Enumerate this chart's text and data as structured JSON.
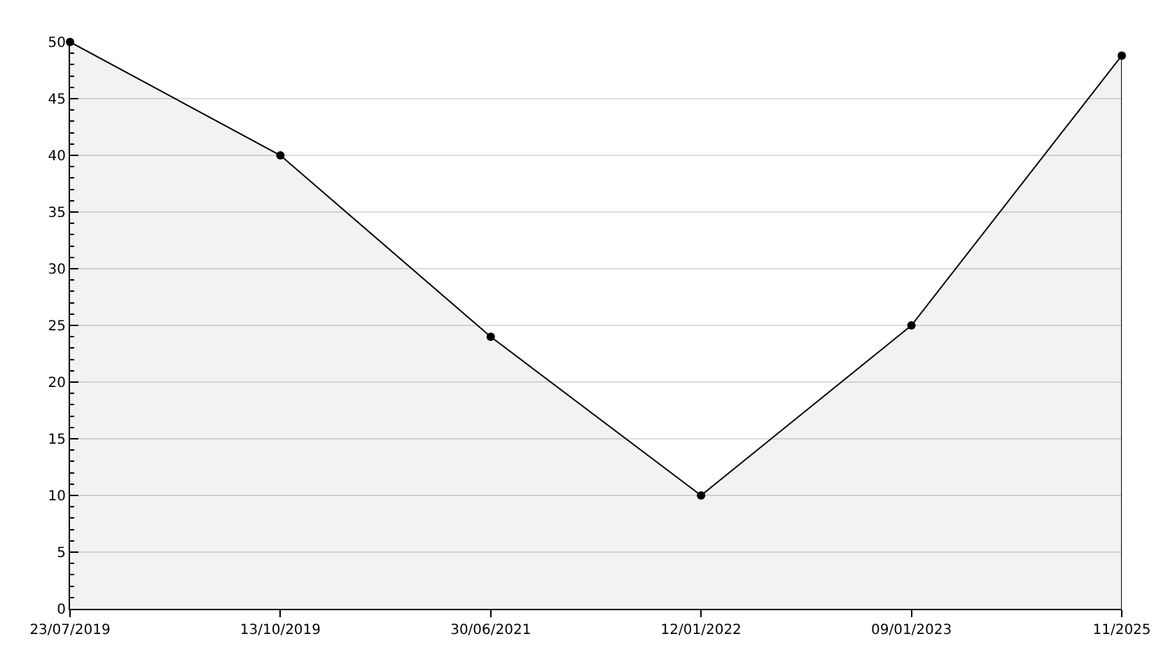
{
  "chart_data": {
    "type": "area",
    "categories": [
      "23/07/2019",
      "13/10/2019",
      "30/06/2021",
      "12/01/2022",
      "09/01/2023",
      "11/2025"
    ],
    "series": [
      {
        "color": "#000000",
        "values": [
          50,
          40,
          24,
          10,
          25,
          48.8
        ]
      }
    ],
    "ylim": [
      0,
      50
    ],
    "yticks": [
      0,
      5,
      10,
      15,
      20,
      25,
      30,
      35,
      40,
      45,
      50
    ],
    "grid": "y",
    "marker": "circle",
    "line_style": "solid"
  }
}
